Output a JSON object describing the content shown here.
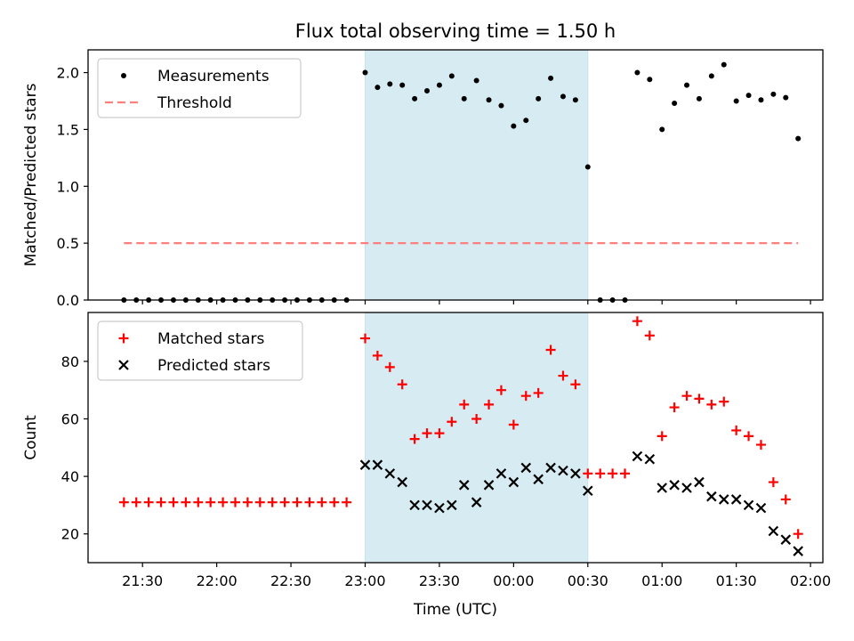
{
  "chart_data": {
    "title": "Flux total observing time = 1.50 h",
    "xlabel": "Time (UTC)",
    "x_unit": "minutes since 21:00 UTC",
    "x_tick_labels": [
      "21:30",
      "22:00",
      "22:30",
      "23:00",
      "23:30",
      "00:00",
      "00:30",
      "01:00",
      "01:30",
      "02:00"
    ],
    "x_tick_values": [
      30,
      60,
      90,
      120,
      150,
      180,
      210,
      240,
      270,
      300
    ],
    "xlim": [
      8,
      305
    ],
    "observing_window": {
      "x_start": 120,
      "x_end": 210,
      "color": "#add8e6"
    },
    "panels": [
      {
        "type": "scatter",
        "ylabel": "Matched/Predicted stars",
        "ylim": [
          0,
          2.2
        ],
        "y_ticks": [
          0.0,
          0.5,
          1.0,
          1.5,
          2.0
        ],
        "y_tick_labels": [
          "0.0",
          "0.5",
          "1.0",
          "1.5",
          "2.0"
        ],
        "legend_position": "upper-left",
        "series": [
          {
            "name": "Measurements",
            "marker": "dot",
            "color": "#000000",
            "points": [
              [
                22.5,
                0
              ],
              [
                27.5,
                0
              ],
              [
                32.5,
                0
              ],
              [
                37.5,
                0
              ],
              [
                42.5,
                0
              ],
              [
                47.5,
                0
              ],
              [
                52.5,
                0
              ],
              [
                57.5,
                0
              ],
              [
                62.5,
                0
              ],
              [
                67.5,
                0
              ],
              [
                72.5,
                0
              ],
              [
                77.5,
                0
              ],
              [
                82.5,
                0
              ],
              [
                87.5,
                0
              ],
              [
                92.5,
                0
              ],
              [
                97.5,
                0
              ],
              [
                102.5,
                0
              ],
              [
                107.5,
                0
              ],
              [
                112.5,
                0
              ],
              [
                120,
                2.0
              ],
              [
                125,
                1.87
              ],
              [
                130,
                1.9
              ],
              [
                135,
                1.89
              ],
              [
                140,
                1.77
              ],
              [
                145,
                1.84
              ],
              [
                150,
                1.89
              ],
              [
                155,
                1.97
              ],
              [
                160,
                1.77
              ],
              [
                165,
                1.93
              ],
              [
                170,
                1.76
              ],
              [
                175,
                1.71
              ],
              [
                180,
                1.53
              ],
              [
                185,
                1.58
              ],
              [
                190,
                1.77
              ],
              [
                195,
                1.95
              ],
              [
                200,
                1.79
              ],
              [
                205,
                1.76
              ],
              [
                210,
                1.17
              ],
              [
                215,
                0
              ],
              [
                220,
                0
              ],
              [
                225,
                0
              ],
              [
                230,
                2.0
              ],
              [
                235,
                1.94
              ],
              [
                240,
                1.5
              ],
              [
                245,
                1.73
              ],
              [
                250,
                1.89
              ],
              [
                255,
                1.77
              ],
              [
                260,
                1.97
              ],
              [
                265,
                2.07
              ],
              [
                270,
                1.75
              ],
              [
                275,
                1.8
              ],
              [
                280,
                1.76
              ],
              [
                285,
                1.81
              ],
              [
                290,
                1.78
              ],
              [
                295,
                1.42
              ]
            ]
          },
          {
            "name": "Threshold",
            "marker": "dashed-line",
            "color": "#ff7f7f",
            "points": [
              [
                22.5,
                0.5
              ],
              [
                295,
                0.5
              ]
            ]
          }
        ]
      },
      {
        "type": "scatter",
        "ylabel": "Count",
        "ylim": [
          10,
          97
        ],
        "y_ticks": [
          20,
          40,
          60,
          80
        ],
        "y_tick_labels": [
          "20",
          "40",
          "60",
          "80"
        ],
        "legend_position": "upper-left",
        "series": [
          {
            "name": "Matched stars",
            "marker": "plus",
            "color": "#ff0000",
            "points": [
              [
                22.5,
                31
              ],
              [
                27.5,
                31
              ],
              [
                32.5,
                31
              ],
              [
                37.5,
                31
              ],
              [
                42.5,
                31
              ],
              [
                47.5,
                31
              ],
              [
                52.5,
                31
              ],
              [
                57.5,
                31
              ],
              [
                62.5,
                31
              ],
              [
                67.5,
                31
              ],
              [
                72.5,
                31
              ],
              [
                77.5,
                31
              ],
              [
                82.5,
                31
              ],
              [
                87.5,
                31
              ],
              [
                92.5,
                31
              ],
              [
                97.5,
                31
              ],
              [
                102.5,
                31
              ],
              [
                107.5,
                31
              ],
              [
                112.5,
                31
              ],
              [
                120,
                88
              ],
              [
                125,
                82
              ],
              [
                130,
                78
              ],
              [
                135,
                72
              ],
              [
                140,
                53
              ],
              [
                145,
                55
              ],
              [
                150,
                55
              ],
              [
                155,
                59
              ],
              [
                160,
                65
              ],
              [
                165,
                60
              ],
              [
                170,
                65
              ],
              [
                175,
                70
              ],
              [
                180,
                58
              ],
              [
                185,
                68
              ],
              [
                190,
                69
              ],
              [
                195,
                84
              ],
              [
                200,
                75
              ],
              [
                205,
                72
              ],
              [
                210,
                41
              ],
              [
                215,
                41
              ],
              [
                220,
                41
              ],
              [
                225,
                41
              ],
              [
                230,
                94
              ],
              [
                235,
                89
              ],
              [
                240,
                54
              ],
              [
                245,
                64
              ],
              [
                250,
                68
              ],
              [
                255,
                67
              ],
              [
                260,
                65
              ],
              [
                265,
                66
              ],
              [
                270,
                56
              ],
              [
                275,
                54
              ],
              [
                280,
                51
              ],
              [
                285,
                38
              ],
              [
                290,
                32
              ],
              [
                295,
                20
              ]
            ]
          },
          {
            "name": "Predicted stars",
            "marker": "x",
            "color": "#000000",
            "points": [
              [
                120,
                44
              ],
              [
                125,
                44
              ],
              [
                130,
                41
              ],
              [
                135,
                38
              ],
              [
                140,
                30
              ],
              [
                145,
                30
              ],
              [
                150,
                29
              ],
              [
                155,
                30
              ],
              [
                160,
                37
              ],
              [
                165,
                31
              ],
              [
                170,
                37
              ],
              [
                175,
                41
              ],
              [
                180,
                38
              ],
              [
                185,
                43
              ],
              [
                190,
                39
              ],
              [
                195,
                43
              ],
              [
                200,
                42
              ],
              [
                205,
                41
              ],
              [
                210,
                35
              ],
              [
                230,
                47
              ],
              [
                235,
                46
              ],
              [
                240,
                36
              ],
              [
                245,
                37
              ],
              [
                250,
                36
              ],
              [
                255,
                38
              ],
              [
                260,
                33
              ],
              [
                265,
                32
              ],
              [
                270,
                32
              ],
              [
                275,
                30
              ],
              [
                280,
                29
              ],
              [
                285,
                21
              ],
              [
                290,
                18
              ],
              [
                295,
                14
              ]
            ]
          }
        ]
      }
    ]
  }
}
